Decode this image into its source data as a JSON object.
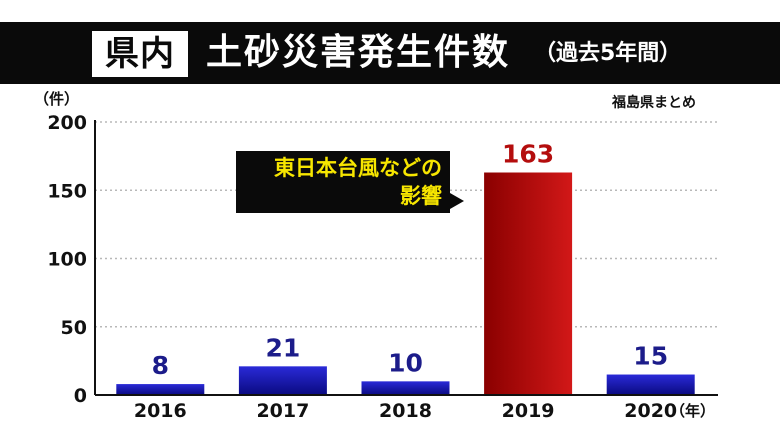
{
  "header": {
    "badge": "県内",
    "title": "土砂災害発生件数",
    "subtitle": "（過去5年間）"
  },
  "source_note": "福島県まとめ",
  "callout": {
    "line1": "東日本台風などの",
    "line2": "影響"
  },
  "colors": {
    "normal_bar_top": "#2a2ad8",
    "normal_bar_bottom": "#0a0a80",
    "highlight_bar_top": "#8a0000",
    "highlight_bar_bottom": "#d21818",
    "normal_label": "#1c1c8a",
    "highlight_label": "#b40d0d",
    "callout_text": "#f7e600"
  },
  "chart_data": {
    "type": "bar",
    "categories": [
      "2016",
      "2017",
      "2018",
      "2019",
      "2020"
    ],
    "values": [
      8,
      21,
      10,
      163,
      15
    ],
    "highlight_index": 3,
    "ylim": [
      0,
      200
    ],
    "yticks": [
      "0",
      "50",
      "100",
      "150",
      "200"
    ],
    "ylabel": "（件）",
    "xlabel": "（年）",
    "grid": true
  }
}
